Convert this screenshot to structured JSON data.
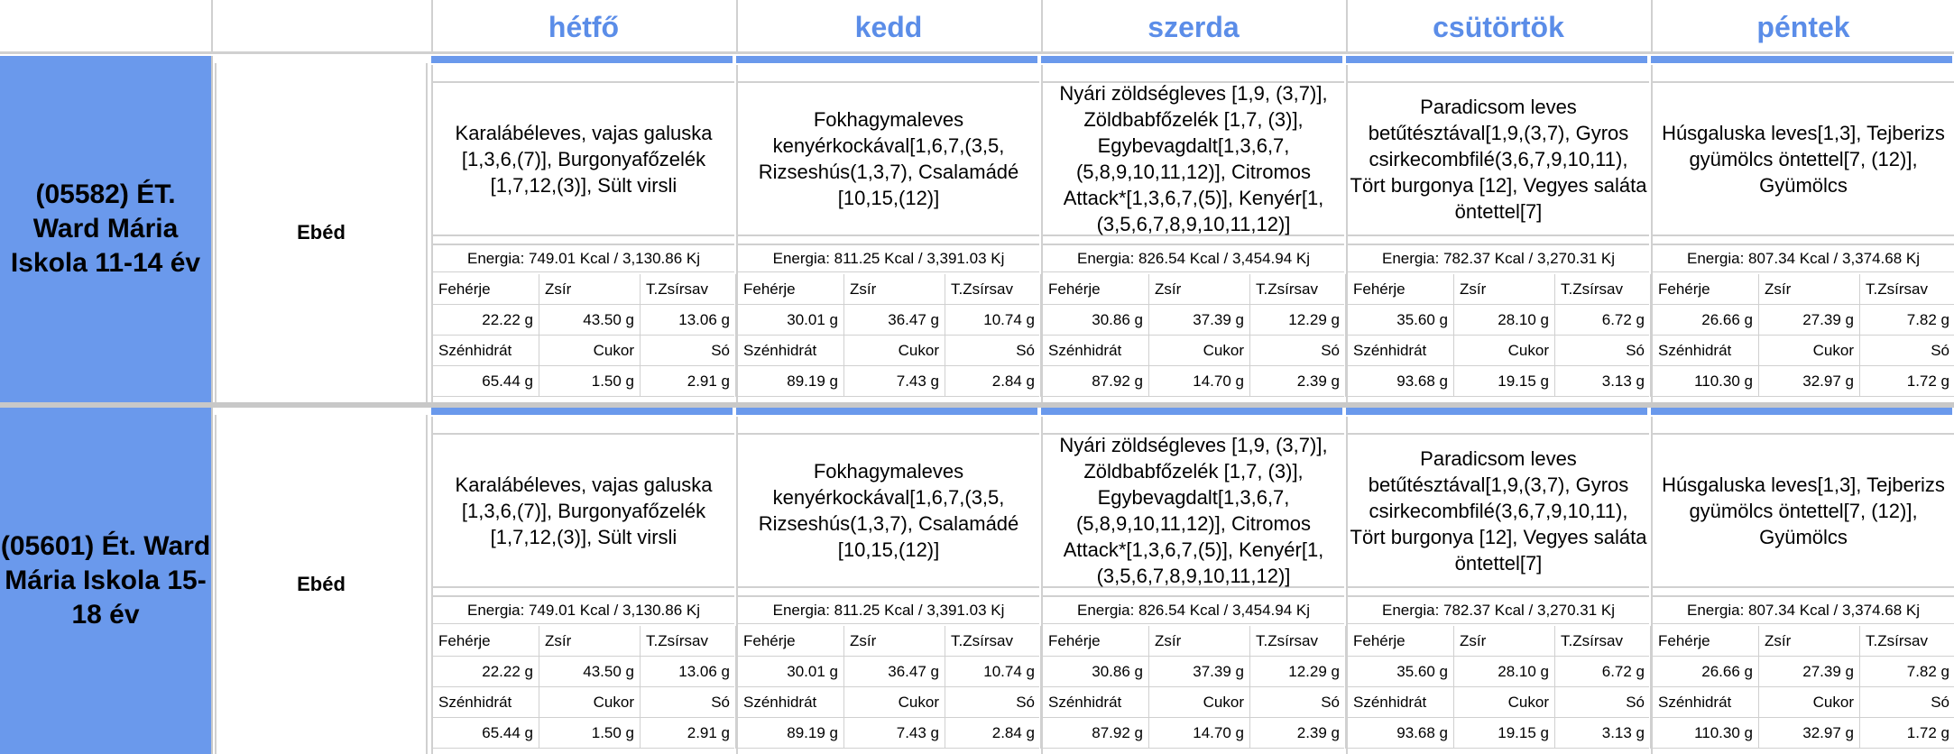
{
  "days": [
    "hétfő",
    "kedd",
    "szerda",
    "csütörtök",
    "péntek"
  ],
  "labels": {
    "protein": "Fehérje",
    "fat": "Zsír",
    "satfat": "T.Zsírsav",
    "carb": "Szénhidrát",
    "sugar": "Cukor",
    "salt": "Só"
  },
  "colors": {
    "accent": "#6a99ec",
    "day_header": "#5b8de8",
    "grid": "#d0d0d0"
  },
  "groups": [
    {
      "school": "(05582) ÉT. Ward Mária Iskola 11-14 év",
      "meal": "Ebéd",
      "days": [
        {
          "menu": "Karalábéleves, vajas galuska [1,3,6,(7)], Burgonyafőzelék [1,7,12,(3)], Sült virsli",
          "energy": "Energia: 749.01 Kcal / 3,130.86 Kj",
          "protein": "22.22 g",
          "fat": "43.50 g",
          "satfat": "13.06 g",
          "carb": "65.44 g",
          "sugar": "1.50 g",
          "salt": "2.91 g"
        },
        {
          "menu": "Fokhagymaleves kenyérkockával[1,6,7,(3,5, Rizseshús(1,3,7), Csalamádé [10,15,(12)]",
          "energy": "Energia: 811.25 Kcal / 3,391.03 Kj",
          "protein": "30.01 g",
          "fat": "36.47 g",
          "satfat": "10.74 g",
          "carb": "89.19 g",
          "sugar": "7.43 g",
          "salt": "2.84 g"
        },
        {
          "menu": "Nyári zöldségleves [1,9, (3,7)], Zöldbabfőzelék [1,7, (3)], Egybevagdalt[1,3,6,7, (5,8,9,10,11,12)], Citromos Attack*[1,3,6,7,(5)], Kenyér[1, (3,5,6,7,8,9,10,11,12)]",
          "energy": "Energia: 826.54 Kcal / 3,454.94 Kj",
          "protein": "30.86 g",
          "fat": "37.39 g",
          "satfat": "12.29 g",
          "carb": "87.92 g",
          "sugar": "14.70 g",
          "salt": "2.39 g"
        },
        {
          "menu": "Paradicsom leves betűtésztával[1,9,(3,7), Gyros csirkecombfilé(3,6,7,9,10,11), Tört burgonya [12], Vegyes saláta öntettel[7]",
          "energy": "Energia: 782.37 Kcal / 3,270.31 Kj",
          "protein": "35.60 g",
          "fat": "28.10 g",
          "satfat": "6.72 g",
          "carb": "93.68 g",
          "sugar": "19.15 g",
          "salt": "3.13 g"
        },
        {
          "menu": "Húsgaluska leves[1,3], Tejberizs gyümölcs öntettel[7, (12)], Gyümölcs",
          "energy": "Energia: 807.34 Kcal / 3,374.68 Kj",
          "protein": "26.66 g",
          "fat": "27.39 g",
          "satfat": "7.82 g",
          "carb": "110.30 g",
          "sugar": "32.97 g",
          "salt": "1.72 g"
        }
      ]
    },
    {
      "school": "(05601) Ét. Ward Mária Iskola 15-18 év",
      "meal": "Ebéd",
      "days": [
        {
          "menu": "Karalábéleves, vajas galuska [1,3,6,(7)], Burgonyafőzelék [1,7,12,(3)], Sült virsli",
          "energy": "Energia: 749.01 Kcal / 3,130.86 Kj",
          "protein": "22.22 g",
          "fat": "43.50 g",
          "satfat": "13.06 g",
          "carb": "65.44 g",
          "sugar": "1.50 g",
          "salt": "2.91 g"
        },
        {
          "menu": "Fokhagymaleves kenyérkockával[1,6,7,(3,5, Rizseshús(1,3,7), Csalamádé [10,15,(12)]",
          "energy": "Energia: 811.25 Kcal / 3,391.03 Kj",
          "protein": "30.01 g",
          "fat": "36.47 g",
          "satfat": "10.74 g",
          "carb": "89.19 g",
          "sugar": "7.43 g",
          "salt": "2.84 g"
        },
        {
          "menu": "Nyári zöldségleves [1,9, (3,7)], Zöldbabfőzelék [1,7, (3)], Egybevagdalt[1,3,6,7, (5,8,9,10,11,12)], Citromos Attack*[1,3,6,7,(5)], Kenyér[1, (3,5,6,7,8,9,10,11,12)]",
          "energy": "Energia: 826.54 Kcal / 3,454.94 Kj",
          "protein": "30.86 g",
          "fat": "37.39 g",
          "satfat": "12.29 g",
          "carb": "87.92 g",
          "sugar": "14.70 g",
          "salt": "2.39 g"
        },
        {
          "menu": "Paradicsom leves betűtésztával[1,9,(3,7), Gyros csirkecombfilé(3,6,7,9,10,11), Tört burgonya [12], Vegyes saláta öntettel[7]",
          "energy": "Energia: 782.37 Kcal / 3,270.31 Kj",
          "protein": "35.60 g",
          "fat": "28.10 g",
          "satfat": "6.72 g",
          "carb": "93.68 g",
          "sugar": "19.15 g",
          "salt": "3.13 g"
        },
        {
          "menu": "Húsgaluska leves[1,3], Tejberizs gyümölcs öntettel[7, (12)], Gyümölcs",
          "energy": "Energia: 807.34 Kcal / 3,374.68 Kj",
          "protein": "26.66 g",
          "fat": "27.39 g",
          "satfat": "7.82 g",
          "carb": "110.30 g",
          "sugar": "32.97 g",
          "salt": "1.72 g"
        }
      ]
    }
  ]
}
